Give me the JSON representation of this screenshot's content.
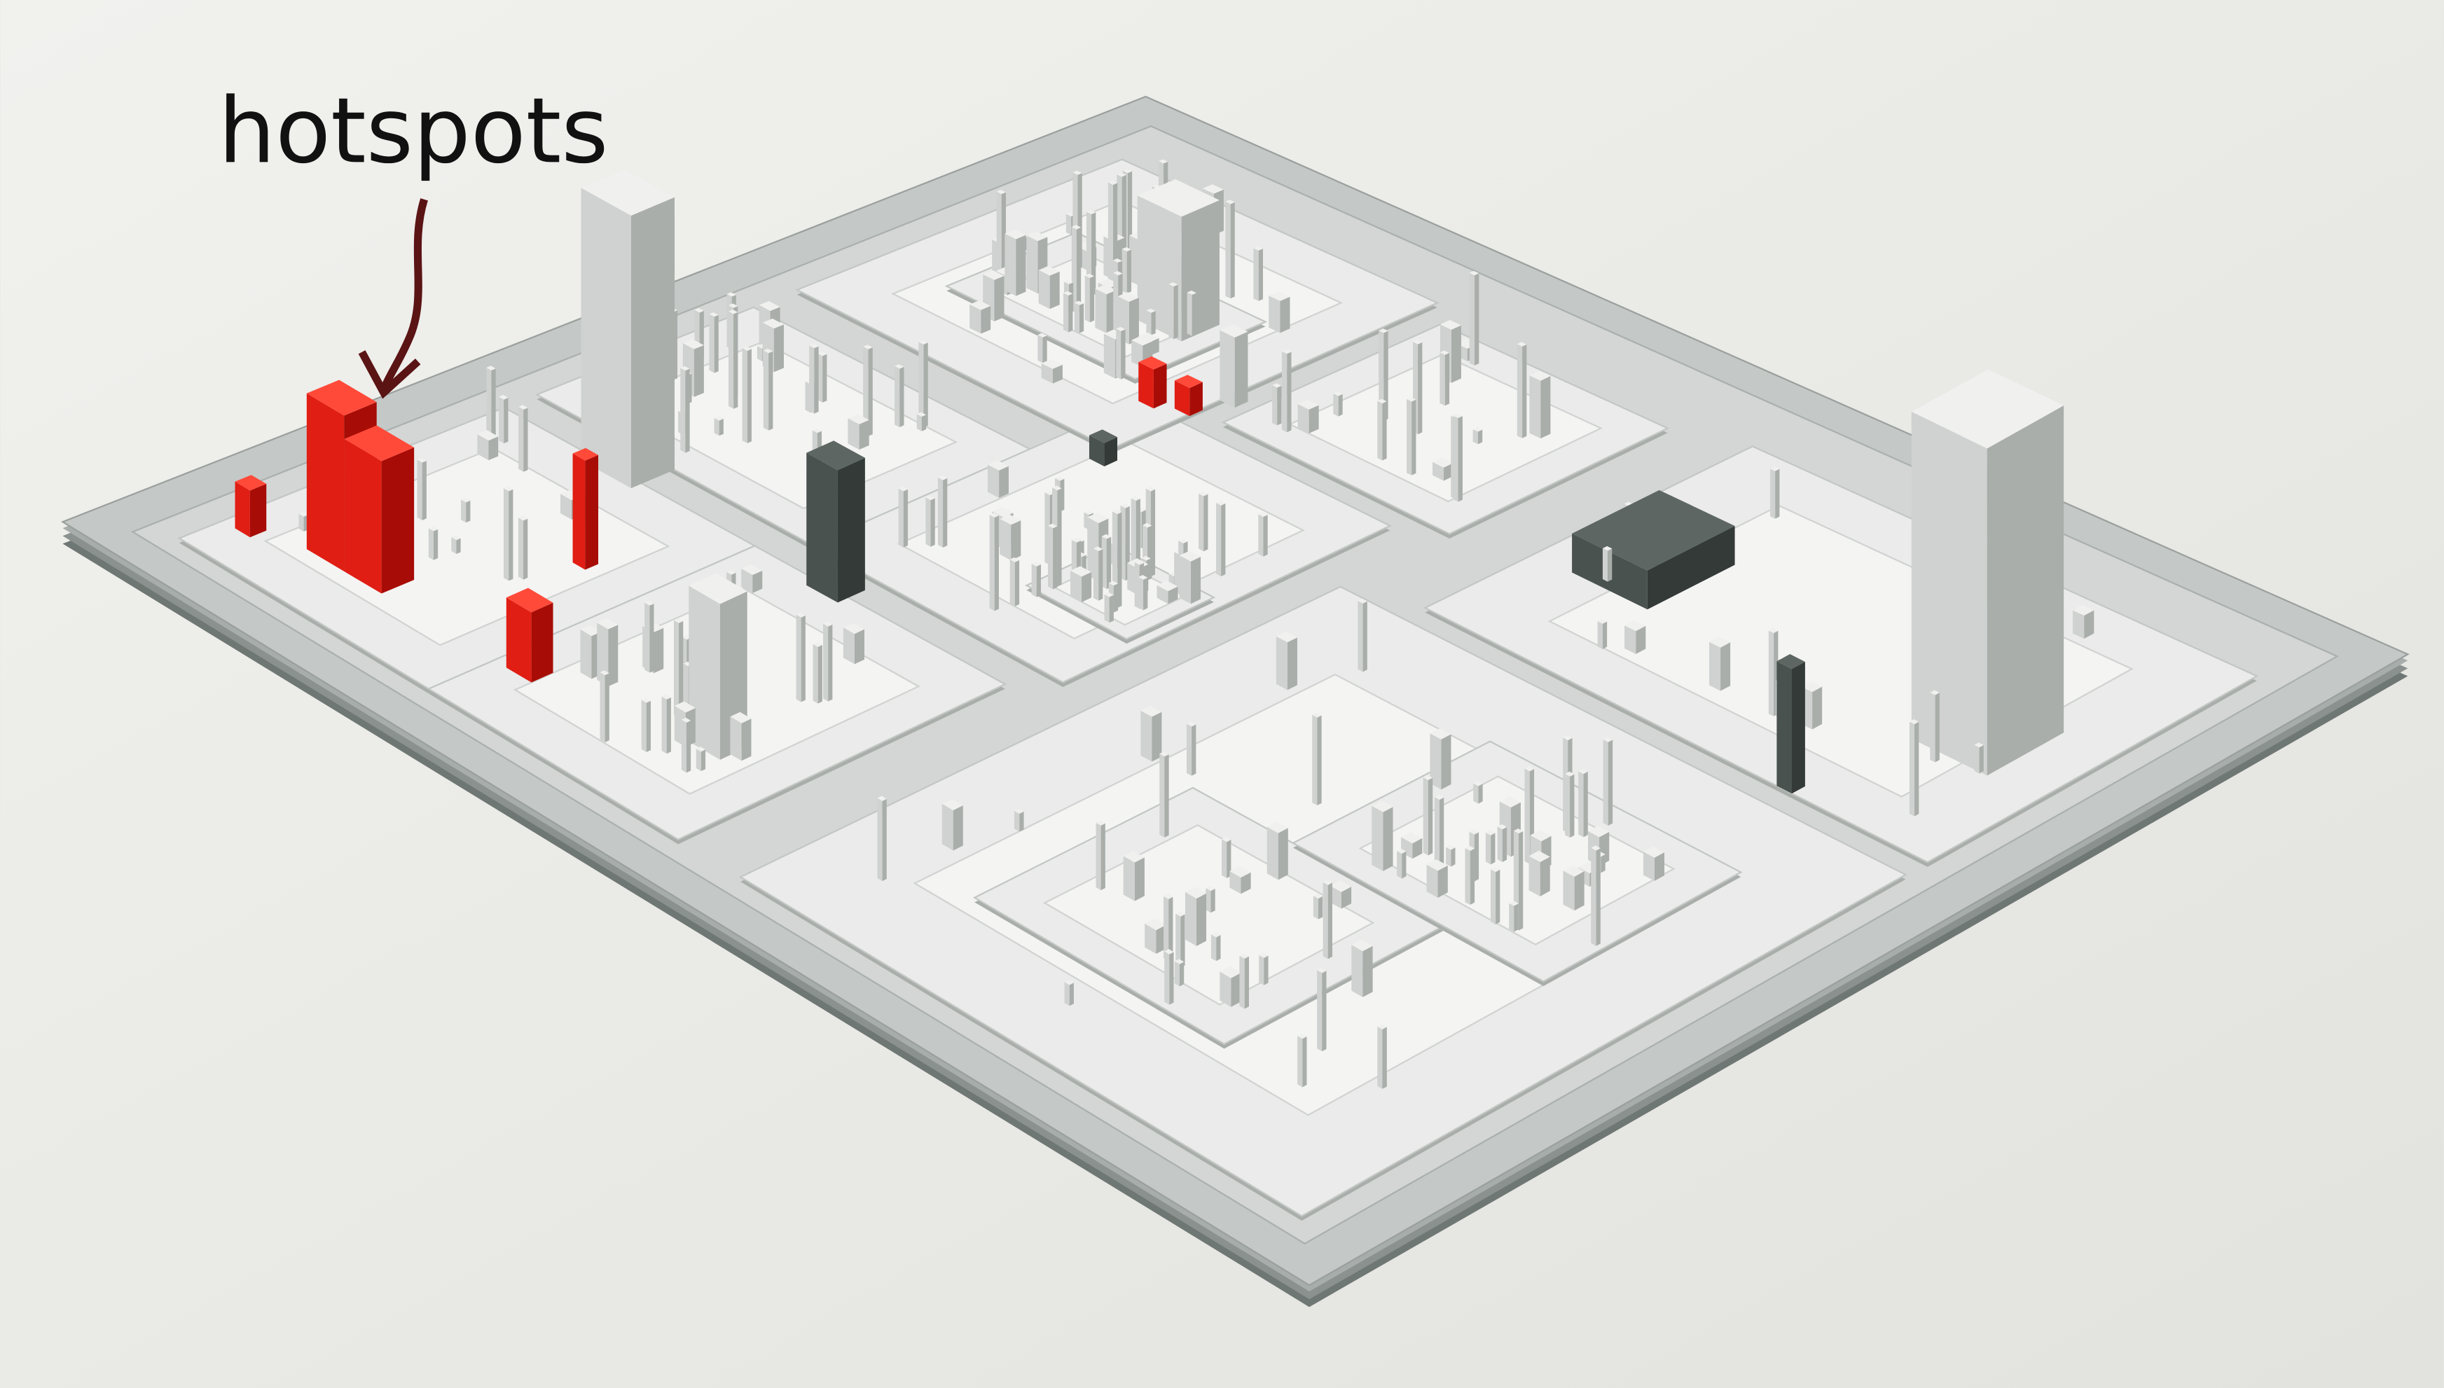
{
  "annotation": {
    "label": "hotspots"
  }
}
